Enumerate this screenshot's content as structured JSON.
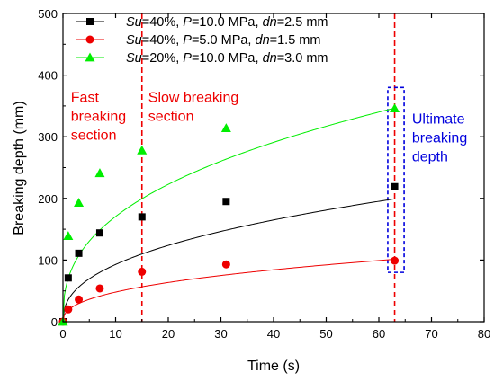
{
  "chart_data": {
    "type": "scatter",
    "xlabel": "Time (s)",
    "ylabel": "Breaking depth (mm)",
    "xlim": [
      0,
      80
    ],
    "ylim": [
      0,
      500
    ],
    "xticks": [
      0,
      10,
      20,
      30,
      40,
      50,
      60,
      70,
      80
    ],
    "yticks": [
      0,
      100,
      200,
      300,
      400,
      500
    ],
    "grid": false,
    "legend_position": "top-left",
    "series": [
      {
        "name_parts": [
          {
            "t": "Su",
            "italic": true
          },
          {
            "t": "=40%, ",
            "italic": false
          },
          {
            "t": "P",
            "italic": true
          },
          {
            "t": "=10.0 MPa, ",
            "italic": false
          },
          {
            "t": "dn",
            "italic": true
          },
          {
            "t": "=2.5 mm",
            "italic": false
          }
        ],
        "color": "#000000",
        "marker": "square",
        "x": [
          0,
          1,
          3,
          7,
          15,
          31,
          63
        ],
        "y": [
          0,
          71,
          111,
          144,
          170,
          195,
          219
        ],
        "curve": {
          "a": 35.7,
          "b": 0.415
        }
      },
      {
        "name_parts": [
          {
            "t": "Su",
            "italic": true
          },
          {
            "t": "=40%, ",
            "italic": false
          },
          {
            "t": "P",
            "italic": true
          },
          {
            "t": "=5.0 MPa, ",
            "italic": false
          },
          {
            "t": "dn",
            "italic": true
          },
          {
            "t": "=1.5 mm",
            "italic": false
          }
        ],
        "color": "#ee0000",
        "marker": "circle",
        "x": [
          0,
          1,
          3,
          7,
          15,
          31,
          63
        ],
        "y": [
          0,
          20,
          36,
          54,
          81,
          93,
          99
        ],
        "curve": {
          "a": 18.9,
          "b": 0.405
        }
      },
      {
        "name_parts": [
          {
            "t": "Su",
            "italic": true
          },
          {
            "t": "=20%, ",
            "italic": false
          },
          {
            "t": "P",
            "italic": true
          },
          {
            "t": "=10.0 MPa, ",
            "italic": false
          },
          {
            "t": "dn",
            "italic": true
          },
          {
            "t": "=3.0 mm",
            "italic": false
          }
        ],
        "color": "#00ee00",
        "marker": "triangle",
        "x": [
          0,
          1,
          3,
          7,
          15,
          31,
          63
        ],
        "y": [
          0,
          139,
          193,
          241,
          278,
          314,
          346
        ],
        "curve": {
          "a": 70.3,
          "b": 0.385
        }
      }
    ],
    "vlines": [
      {
        "x": 15,
        "color": "#ee0000"
      },
      {
        "x": 63,
        "color": "#ee0000"
      }
    ],
    "highlight_box": {
      "x": [
        61.7,
        64.8
      ],
      "y": [
        80,
        380
      ],
      "color": "#0000dd"
    },
    "annotations": [
      {
        "lines": [
          "Fast",
          "breaking",
          "section"
        ],
        "color": "#ee0000",
        "anchor_x": 1.5,
        "anchor_y": 380
      },
      {
        "lines": [
          "Slow breaking",
          "section"
        ],
        "color": "#ee0000",
        "anchor_x": 16.2,
        "anchor_y": 380
      },
      {
        "lines": [
          "Ultimate",
          "breaking",
          "depth"
        ],
        "color": "#0000dd",
        "anchor_x": 66.3,
        "anchor_y": 345
      }
    ]
  }
}
